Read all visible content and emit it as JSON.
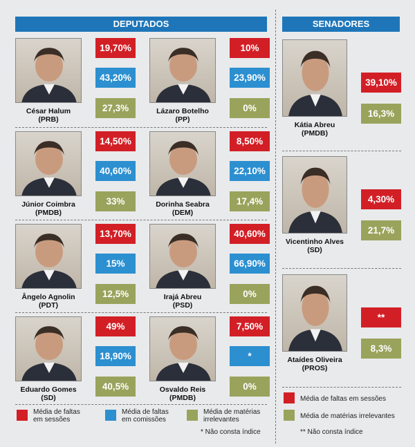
{
  "headers": {
    "deputados": "DEPUTADOS",
    "senadores": "SENADORES"
  },
  "deputados": [
    {
      "name": "César Halum",
      "party": "(PRB)",
      "faltas": "19,70%",
      "comissoes": "43,20%",
      "materias": "27,3%"
    },
    {
      "name": "Lázaro Botelho",
      "party": "(PP)",
      "faltas": "10%",
      "comissoes": "23,90%",
      "materias": "0%"
    },
    {
      "name": "Júnior Coimbra",
      "party": "(PMDB)",
      "faltas": "14,50%",
      "comissoes": "40,60%",
      "materias": "33%"
    },
    {
      "name": "Dorinha Seabra",
      "party": "(DEM)",
      "faltas": "8,50%",
      "comissoes": "22,10%",
      "materias": "17,4%"
    },
    {
      "name": "Ângelo Agnolin",
      "party": "(PDT)",
      "faltas": "13,70%",
      "comissoes": "15%",
      "materias": "12,5%"
    },
    {
      "name": "Irajá Abreu",
      "party": "(PSD)",
      "faltas": "40,60%",
      "comissoes": "66,90%",
      "materias": "0%"
    },
    {
      "name": "Eduardo Gomes",
      "party": "(SD)",
      "faltas": "49%",
      "comissoes": "18,90%",
      "materias": "40,5%"
    },
    {
      "name": "Osvaldo Reis",
      "party": "(PMDB)",
      "faltas": "7,50%",
      "comissoes": "*",
      "materias": "0%"
    }
  ],
  "senadores": [
    {
      "name": "Kátia Abreu",
      "party": "(PMDB)",
      "faltas": "39,10%",
      "materias": "16,3%"
    },
    {
      "name": "Vicentinho Alves",
      "party": "(SD)",
      "faltas": "4,30%",
      "materias": "21,7%"
    },
    {
      "name": "Ataídes Oliveira",
      "party": "(PROS)",
      "faltas": "**",
      "materias": "8,3%"
    }
  ],
  "legend_deputados": {
    "faltas": "Média de faltas em sessões",
    "comissoes": "Média de faltas em comissões",
    "materias": "Média de matérias irrelevantes",
    "note": "* Não consta índice"
  },
  "legend_senadores": {
    "faltas": "Média de faltas em sessões",
    "materias": "Média de matérias irrelevantes",
    "note": "** Não consta índice"
  },
  "colors": {
    "faltas": "#d21f26",
    "comissoes": "#2c8fd0",
    "materias": "#9aa35c",
    "header": "#1e76b9"
  },
  "icons": {
    "photo": "person-portrait-icon"
  }
}
